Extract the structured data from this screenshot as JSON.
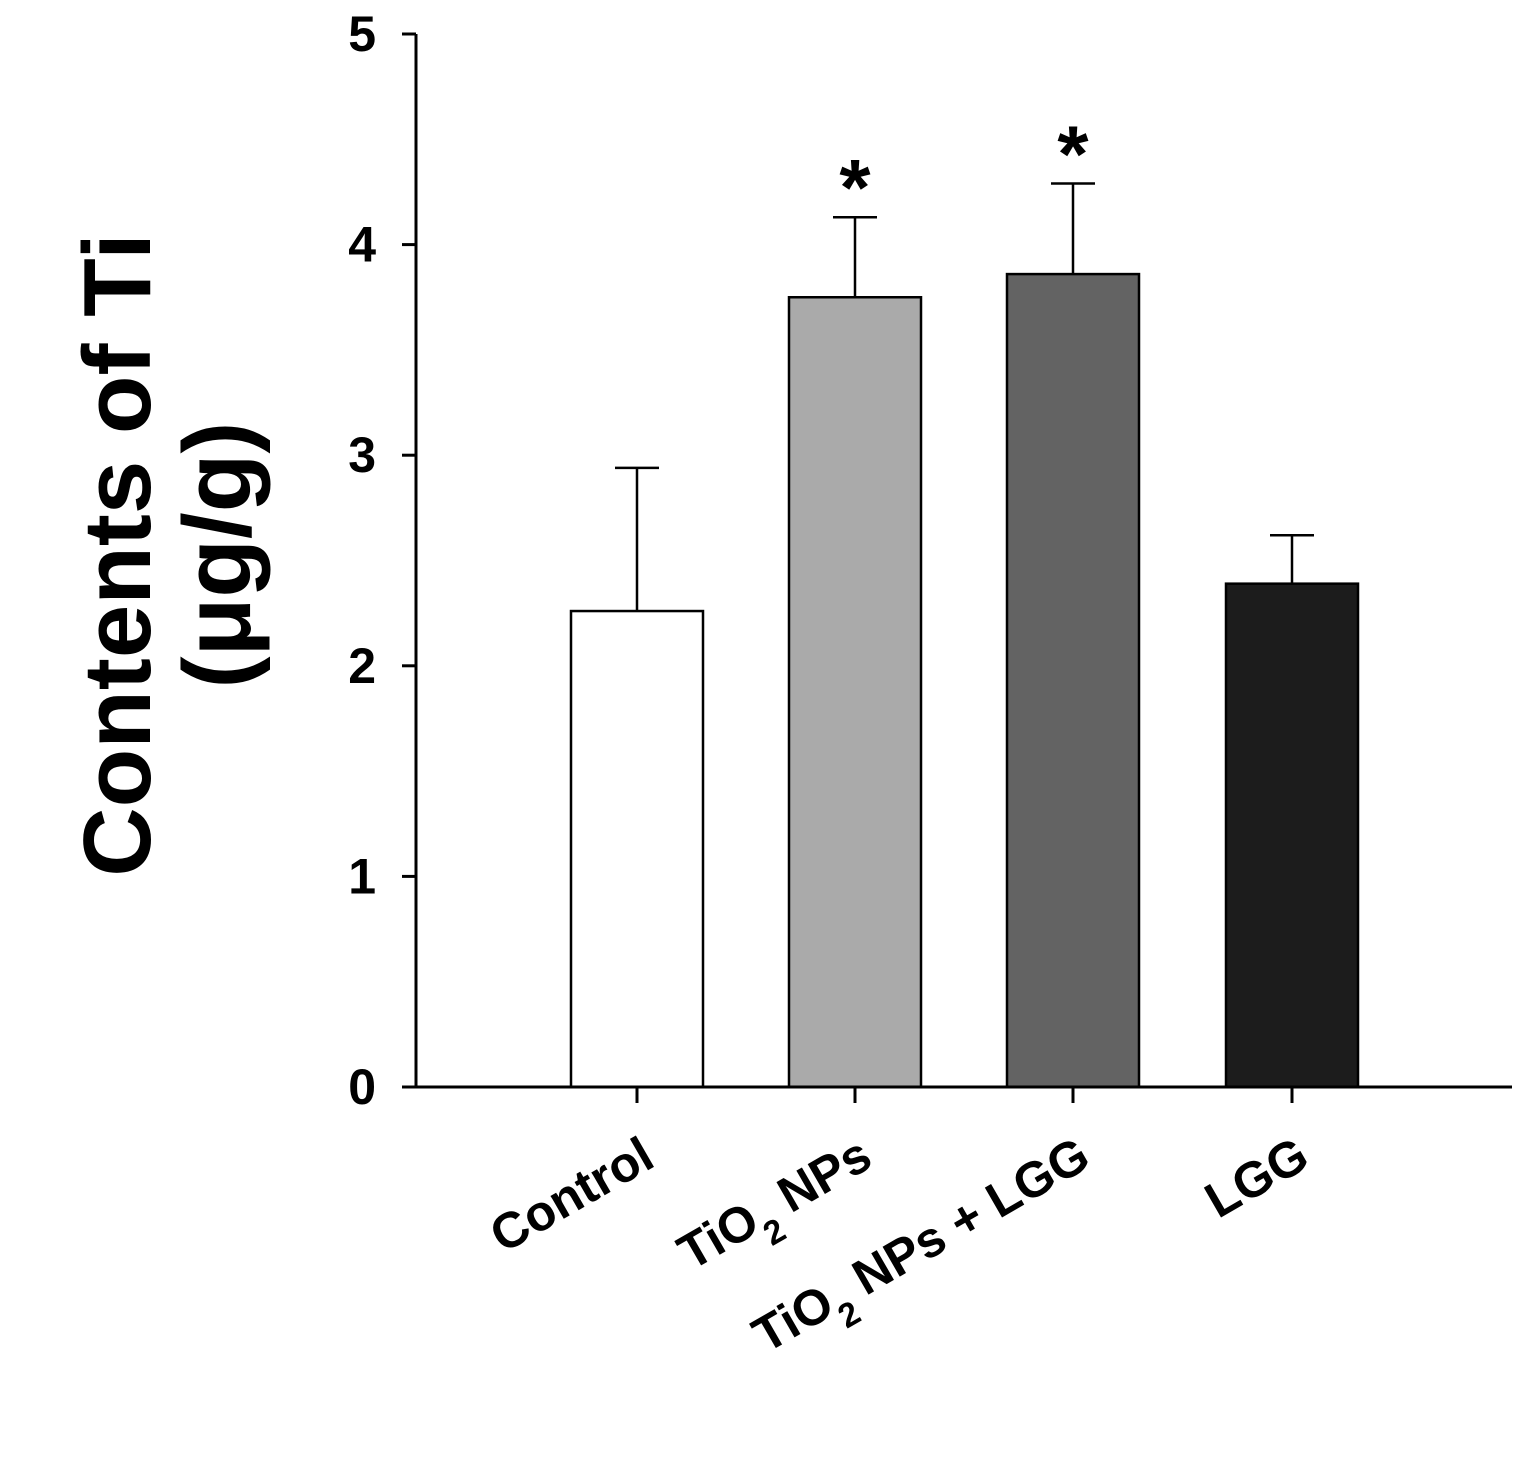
{
  "chart_data": {
    "type": "bar",
    "title": "",
    "xlabel": "",
    "ylabel": "Contents of Ti (μg/g)",
    "ylabel_lines": [
      "Contents of Ti",
      "(μg/g)"
    ],
    "ylim": [
      0,
      5
    ],
    "yticks": [
      0,
      1,
      2,
      3,
      4,
      5
    ],
    "grid": false,
    "categories": [
      {
        "main": "Control",
        "sub": "",
        "rest": ""
      },
      {
        "main": "TiO",
        "sub": "2",
        "rest": " NPs"
      },
      {
        "main": "TiO",
        "sub": "2",
        "rest": " NPs + LGG"
      },
      {
        "main": "LGG",
        "sub": "",
        "rest": ""
      }
    ],
    "category_labels": [
      "Control",
      "TiO2 NPs",
      "TiO2 NPs + LGG",
      "LGG"
    ],
    "values": [
      2.26,
      3.75,
      3.86,
      2.39
    ],
    "errors": [
      0.68,
      0.38,
      0.43,
      0.23
    ],
    "significance": [
      "",
      "*",
      "*",
      ""
    ],
    "colors": [
      "#ffffff",
      "#aaaaaa",
      "#636363",
      "#1c1c1c"
    ]
  }
}
